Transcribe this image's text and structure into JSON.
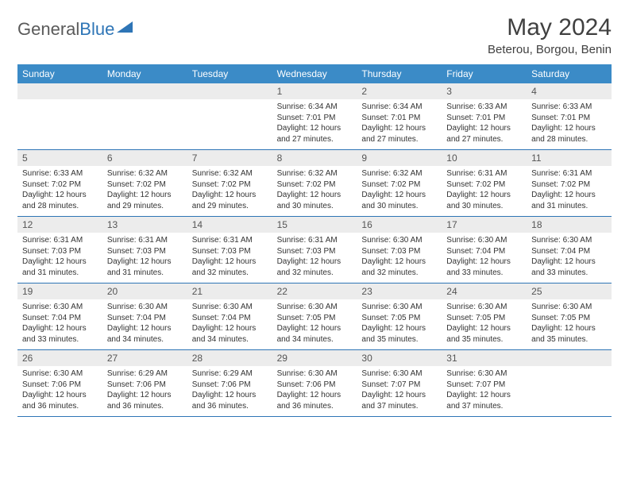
{
  "logo": {
    "text_gray": "General",
    "text_blue": "Blue"
  },
  "title": "May 2024",
  "location": "Beterou, Borgou, Benin",
  "colors": {
    "header_bg": "#3b8bc7",
    "divider": "#2e75b6",
    "daynum_bg": "#ececec",
    "text_dark": "#404040",
    "body_text": "#333333"
  },
  "weekdays": [
    "Sunday",
    "Monday",
    "Tuesday",
    "Wednesday",
    "Thursday",
    "Friday",
    "Saturday"
  ],
  "weeks": [
    [
      null,
      null,
      null,
      {
        "n": "1",
        "sr": "6:34 AM",
        "ss": "7:01 PM",
        "dl": "12 hours and 27 minutes."
      },
      {
        "n": "2",
        "sr": "6:34 AM",
        "ss": "7:01 PM",
        "dl": "12 hours and 27 minutes."
      },
      {
        "n": "3",
        "sr": "6:33 AM",
        "ss": "7:01 PM",
        "dl": "12 hours and 27 minutes."
      },
      {
        "n": "4",
        "sr": "6:33 AM",
        "ss": "7:01 PM",
        "dl": "12 hours and 28 minutes."
      }
    ],
    [
      {
        "n": "5",
        "sr": "6:33 AM",
        "ss": "7:02 PM",
        "dl": "12 hours and 28 minutes."
      },
      {
        "n": "6",
        "sr": "6:32 AM",
        "ss": "7:02 PM",
        "dl": "12 hours and 29 minutes."
      },
      {
        "n": "7",
        "sr": "6:32 AM",
        "ss": "7:02 PM",
        "dl": "12 hours and 29 minutes."
      },
      {
        "n": "8",
        "sr": "6:32 AM",
        "ss": "7:02 PM",
        "dl": "12 hours and 30 minutes."
      },
      {
        "n": "9",
        "sr": "6:32 AM",
        "ss": "7:02 PM",
        "dl": "12 hours and 30 minutes."
      },
      {
        "n": "10",
        "sr": "6:31 AM",
        "ss": "7:02 PM",
        "dl": "12 hours and 30 minutes."
      },
      {
        "n": "11",
        "sr": "6:31 AM",
        "ss": "7:02 PM",
        "dl": "12 hours and 31 minutes."
      }
    ],
    [
      {
        "n": "12",
        "sr": "6:31 AM",
        "ss": "7:03 PM",
        "dl": "12 hours and 31 minutes."
      },
      {
        "n": "13",
        "sr": "6:31 AM",
        "ss": "7:03 PM",
        "dl": "12 hours and 31 minutes."
      },
      {
        "n": "14",
        "sr": "6:31 AM",
        "ss": "7:03 PM",
        "dl": "12 hours and 32 minutes."
      },
      {
        "n": "15",
        "sr": "6:31 AM",
        "ss": "7:03 PM",
        "dl": "12 hours and 32 minutes."
      },
      {
        "n": "16",
        "sr": "6:30 AM",
        "ss": "7:03 PM",
        "dl": "12 hours and 32 minutes."
      },
      {
        "n": "17",
        "sr": "6:30 AM",
        "ss": "7:04 PM",
        "dl": "12 hours and 33 minutes."
      },
      {
        "n": "18",
        "sr": "6:30 AM",
        "ss": "7:04 PM",
        "dl": "12 hours and 33 minutes."
      }
    ],
    [
      {
        "n": "19",
        "sr": "6:30 AM",
        "ss": "7:04 PM",
        "dl": "12 hours and 33 minutes."
      },
      {
        "n": "20",
        "sr": "6:30 AM",
        "ss": "7:04 PM",
        "dl": "12 hours and 34 minutes."
      },
      {
        "n": "21",
        "sr": "6:30 AM",
        "ss": "7:04 PM",
        "dl": "12 hours and 34 minutes."
      },
      {
        "n": "22",
        "sr": "6:30 AM",
        "ss": "7:05 PM",
        "dl": "12 hours and 34 minutes."
      },
      {
        "n": "23",
        "sr": "6:30 AM",
        "ss": "7:05 PM",
        "dl": "12 hours and 35 minutes."
      },
      {
        "n": "24",
        "sr": "6:30 AM",
        "ss": "7:05 PM",
        "dl": "12 hours and 35 minutes."
      },
      {
        "n": "25",
        "sr": "6:30 AM",
        "ss": "7:05 PM",
        "dl": "12 hours and 35 minutes."
      }
    ],
    [
      {
        "n": "26",
        "sr": "6:30 AM",
        "ss": "7:06 PM",
        "dl": "12 hours and 36 minutes."
      },
      {
        "n": "27",
        "sr": "6:29 AM",
        "ss": "7:06 PM",
        "dl": "12 hours and 36 minutes."
      },
      {
        "n": "28",
        "sr": "6:29 AM",
        "ss": "7:06 PM",
        "dl": "12 hours and 36 minutes."
      },
      {
        "n": "29",
        "sr": "6:30 AM",
        "ss": "7:06 PM",
        "dl": "12 hours and 36 minutes."
      },
      {
        "n": "30",
        "sr": "6:30 AM",
        "ss": "7:07 PM",
        "dl": "12 hours and 37 minutes."
      },
      {
        "n": "31",
        "sr": "6:30 AM",
        "ss": "7:07 PM",
        "dl": "12 hours and 37 minutes."
      },
      null
    ]
  ],
  "labels": {
    "sunrise": "Sunrise:",
    "sunset": "Sunset:",
    "daylight": "Daylight:"
  }
}
